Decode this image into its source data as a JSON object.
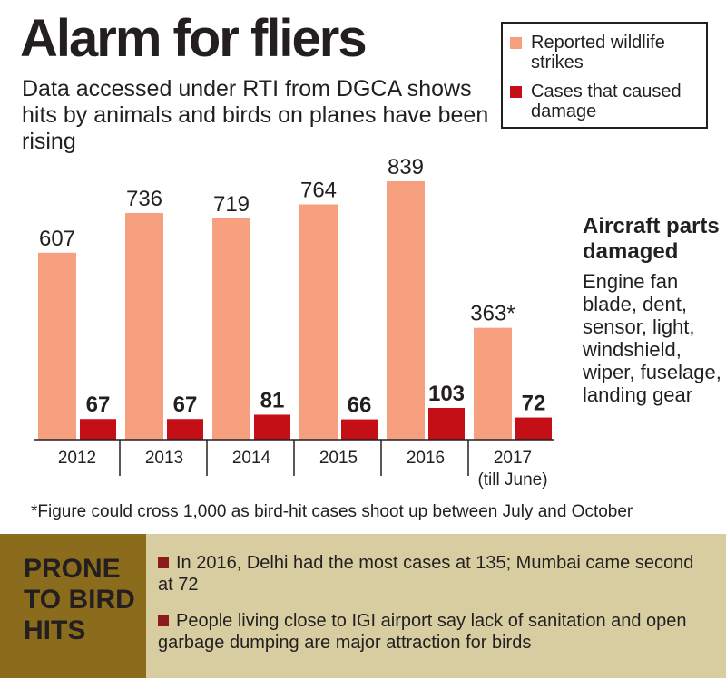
{
  "colors": {
    "strikes": "#f6a07f",
    "damage": "#c40f17",
    "band": "#d8cda1",
    "band_head": "#8b6c1c",
    "bullet": "#8b1a1a"
  },
  "header": {
    "title": "Alarm for fliers",
    "subtitle": "Data accessed under RTI from DGCA shows hits by animals and birds on planes have been rising"
  },
  "legend": {
    "strikes": "Reported wildlife strikes",
    "damage": "Cases that caused damage"
  },
  "chart_data": {
    "type": "bar",
    "categories": [
      "2012",
      "2013",
      "2014",
      "2015",
      "2016",
      "2017"
    ],
    "category_sublabels": [
      "",
      "",
      "",
      "",
      "",
      "(till June)"
    ],
    "series": [
      {
        "name": "Reported wildlife strikes",
        "values": [
          607,
          736,
          719,
          764,
          839,
          363
        ],
        "labels": [
          "607",
          "736",
          "719",
          "764",
          "839",
          "363*"
        ]
      },
      {
        "name": "Cases that caused damage",
        "values": [
          67,
          67,
          81,
          66,
          103,
          72
        ],
        "labels": [
          "67",
          "67",
          "81",
          "66",
          "103",
          "72"
        ]
      }
    ],
    "ylim": [
      0,
      900
    ]
  },
  "parts": {
    "title": "Aircraft parts damaged",
    "text": "Engine fan blade, dent, sensor, light, windshield, wiper, fuselage, landing gear"
  },
  "footnote": "*Figure could cross 1,000 as bird-hit cases shoot up between July and October",
  "prone": {
    "title": "PRONE TO BIRD HITS",
    "bullets": [
      "In 2016, Delhi had the most cases at 135; Mumbai came second at 72",
      "People living close to IGI airport say lack of sanitation and open garbage dumping are major attraction for birds"
    ]
  }
}
